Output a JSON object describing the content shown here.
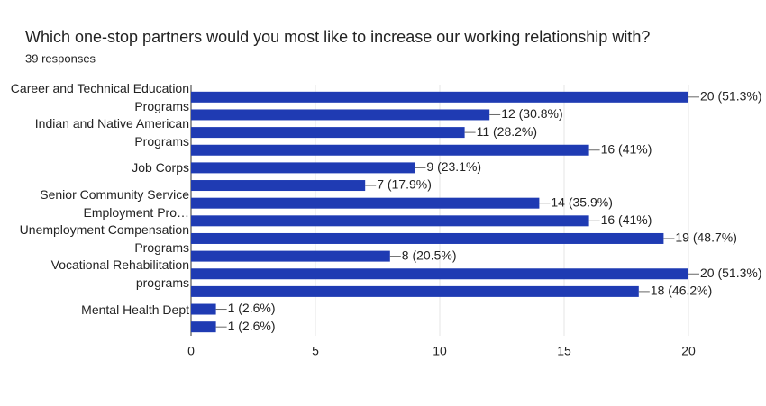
{
  "chart_data": {
    "type": "hbar",
    "title": "Which one-stop partners would you most like to increase our working relationship with?",
    "subtitle": "39 responses",
    "categories": [
      "Career and Technical Education Programs",
      null,
      "Indian and Native American Programs",
      null,
      "Job Corps",
      null,
      "Senior Community Service Employment Pro…",
      null,
      "Unemployment Compensation Programs",
      null,
      "Vocational Rehabilitation programs",
      null,
      "Mental Health Dept",
      null
    ],
    "values": [
      20,
      12,
      11,
      16,
      9,
      7,
      14,
      16,
      19,
      8,
      20,
      18,
      1,
      1
    ],
    "value_labels": [
      "20 (51.3%)",
      "12 (30.8%)",
      "11 (28.2%)",
      "16 (41%)",
      "9 (23.1%)",
      "7 (17.9%)",
      "14 (35.9%)",
      "16 (41%)",
      "19 (48.7%)",
      "8 (20.5%)",
      "20 (51.3%)",
      "18 (46.2%)",
      "1 (2.6%)",
      "1 (2.6%)"
    ],
    "color": "#1f3bb3",
    "xlim": [
      0,
      20
    ],
    "xticks": [
      0,
      5,
      10,
      15,
      20
    ],
    "grid": true
  }
}
